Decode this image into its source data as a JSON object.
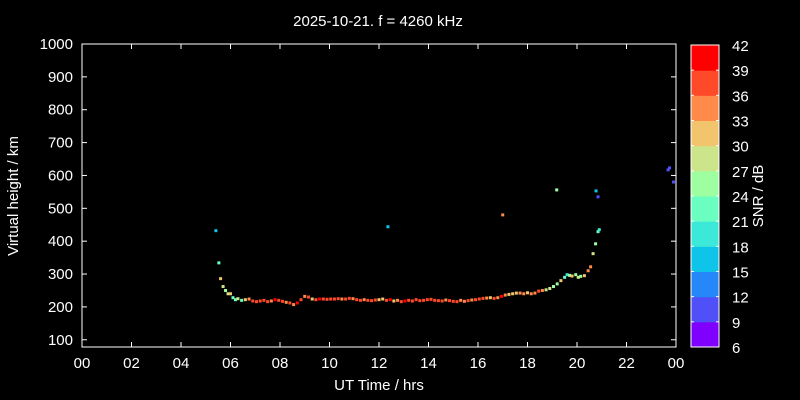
{
  "chart_data": {
    "type": "scatter",
    "title": "2025-10-21. f = 4260 kHz",
    "xlabel": "UT Time / hrs",
    "ylabel": "Virtual height / km",
    "xlim": [
      0,
      24
    ],
    "ylim": [
      78,
      1000
    ],
    "xticks": [
      "00",
      "02",
      "04",
      "06",
      "08",
      "10",
      "12",
      "14",
      "16",
      "18",
      "20",
      "22",
      "00"
    ],
    "yticks": [
      100,
      200,
      300,
      400,
      500,
      600,
      700,
      800,
      900,
      1000
    ],
    "grid": false,
    "colorbar": {
      "label": "SNR / dB",
      "ticks": [
        6,
        9,
        12,
        15,
        18,
        21,
        24,
        27,
        30,
        33,
        36,
        39,
        42
      ],
      "colors": [
        "#8000ff",
        "#5050f8",
        "#2688f8",
        "#0ec4e8",
        "#3ce8d8",
        "#6affc0",
        "#9effa0",
        "#cce58a",
        "#f2c46e",
        "#ff8a4a",
        "#ff4a2a",
        "#ff0000"
      ]
    },
    "point_fields": [
      "time_hrs",
      "height_km",
      "snr_db"
    ],
    "points": [
      [
        5.41,
        432,
        16
      ],
      [
        5.53,
        334,
        23
      ],
      [
        5.6,
        286,
        32
      ],
      [
        5.7,
        262,
        27
      ],
      [
        5.8,
        250,
        24
      ],
      [
        5.9,
        240,
        28
      ],
      [
        6.0,
        240,
        30
      ],
      [
        6.1,
        228,
        23
      ],
      [
        6.2,
        222,
        21
      ],
      [
        6.3,
        225,
        28
      ],
      [
        6.45,
        220,
        22
      ],
      [
        6.6,
        222,
        30
      ],
      [
        6.75,
        224,
        34
      ],
      [
        6.9,
        218,
        38
      ],
      [
        7.05,
        216,
        36
      ],
      [
        7.2,
        218,
        36
      ],
      [
        7.35,
        220,
        38
      ],
      [
        7.5,
        216,
        37
      ],
      [
        7.65,
        218,
        34
      ],
      [
        7.8,
        222,
        40
      ],
      [
        7.95,
        220,
        38
      ],
      [
        8.1,
        217,
        37
      ],
      [
        8.25,
        214,
        35
      ],
      [
        8.4,
        212,
        36
      ],
      [
        8.55,
        207,
        33
      ],
      [
        8.7,
        212,
        40
      ],
      [
        8.85,
        222,
        37
      ],
      [
        9.0,
        232,
        35
      ],
      [
        9.15,
        230,
        37
      ],
      [
        9.3,
        224,
        32
      ],
      [
        9.45,
        222,
        36
      ],
      [
        9.6,
        224,
        39
      ],
      [
        9.75,
        224,
        37
      ],
      [
        9.9,
        223,
        36
      ],
      [
        10.05,
        224,
        38
      ],
      [
        10.2,
        224,
        36
      ],
      [
        10.35,
        225,
        37
      ],
      [
        10.5,
        224,
        33
      ],
      [
        10.65,
        224,
        37
      ],
      [
        10.8,
        226,
        36
      ],
      [
        10.95,
        225,
        35
      ],
      [
        11.1,
        222,
        37
      ],
      [
        11.25,
        220,
        38
      ],
      [
        11.4,
        222,
        33
      ],
      [
        11.55,
        220,
        37
      ],
      [
        11.7,
        219,
        36
      ],
      [
        11.85,
        221,
        38
      ],
      [
        12.0,
        222,
        30
      ],
      [
        12.15,
        224,
        32
      ],
      [
        12.3,
        220,
        37
      ],
      [
        12.45,
        222,
        39
      ],
      [
        12.6,
        218,
        30
      ],
      [
        12.75,
        220,
        35
      ],
      [
        12.9,
        216,
        37
      ],
      [
        13.05,
        218,
        40
      ],
      [
        13.2,
        220,
        38
      ],
      [
        13.35,
        218,
        36
      ],
      [
        13.5,
        222,
        37
      ],
      [
        13.65,
        219,
        38
      ],
      [
        13.8,
        220,
        37
      ],
      [
        13.95,
        222,
        36
      ],
      [
        14.1,
        223,
        36
      ],
      [
        14.25,
        220,
        37
      ],
      [
        14.4,
        219,
        36
      ],
      [
        14.55,
        218,
        38
      ],
      [
        14.7,
        221,
        35
      ],
      [
        14.85,
        219,
        36
      ],
      [
        15.0,
        217,
        38
      ],
      [
        15.15,
        216,
        36
      ],
      [
        15.3,
        220,
        33
      ],
      [
        15.45,
        217,
        35
      ],
      [
        15.6,
        219,
        36
      ],
      [
        15.75,
        221,
        34
      ],
      [
        15.9,
        222,
        37
      ],
      [
        16.05,
        224,
        38
      ],
      [
        16.2,
        226,
        36
      ],
      [
        16.35,
        227,
        33
      ],
      [
        16.5,
        228,
        32
      ],
      [
        16.65,
        226,
        36
      ],
      [
        16.8,
        228,
        35
      ],
      [
        16.95,
        232,
        40
      ],
      [
        17.1,
        236,
        33
      ],
      [
        17.25,
        238,
        30
      ],
      [
        17.4,
        240,
        32
      ],
      [
        17.55,
        242,
        31
      ],
      [
        17.7,
        242,
        33
      ],
      [
        17.85,
        240,
        34
      ],
      [
        18.0,
        243,
        31
      ],
      [
        18.15,
        240,
        33
      ],
      [
        18.3,
        242,
        33
      ],
      [
        18.45,
        248,
        36
      ],
      [
        18.6,
        250,
        35
      ],
      [
        18.75,
        252,
        29
      ],
      [
        18.9,
        256,
        28
      ],
      [
        19.05,
        262,
        24
      ],
      [
        19.2,
        270,
        24
      ],
      [
        19.35,
        280,
        30
      ],
      [
        19.5,
        290,
        22
      ],
      [
        19.6,
        298,
        20
      ],
      [
        19.7,
        296,
        25
      ],
      [
        19.8,
        294,
        30
      ],
      [
        19.95,
        298,
        24
      ],
      [
        20.05,
        290,
        28
      ],
      [
        20.15,
        293,
        26
      ],
      [
        20.3,
        295,
        32
      ],
      [
        20.45,
        310,
        35
      ],
      [
        20.55,
        322,
        33
      ],
      [
        20.65,
        362,
        29
      ],
      [
        20.75,
        392,
        25
      ],
      [
        20.85,
        429,
        21
      ],
      [
        20.9,
        435,
        19
      ],
      [
        12.36,
        444,
        16
      ],
      [
        17.0,
        480,
        35
      ],
      [
        19.18,
        556,
        25
      ],
      [
        20.77,
        553,
        16
      ],
      [
        20.85,
        535,
        11
      ],
      [
        23.68,
        617,
        10
      ],
      [
        23.74,
        623,
        10
      ],
      [
        23.9,
        580,
        10
      ]
    ]
  }
}
